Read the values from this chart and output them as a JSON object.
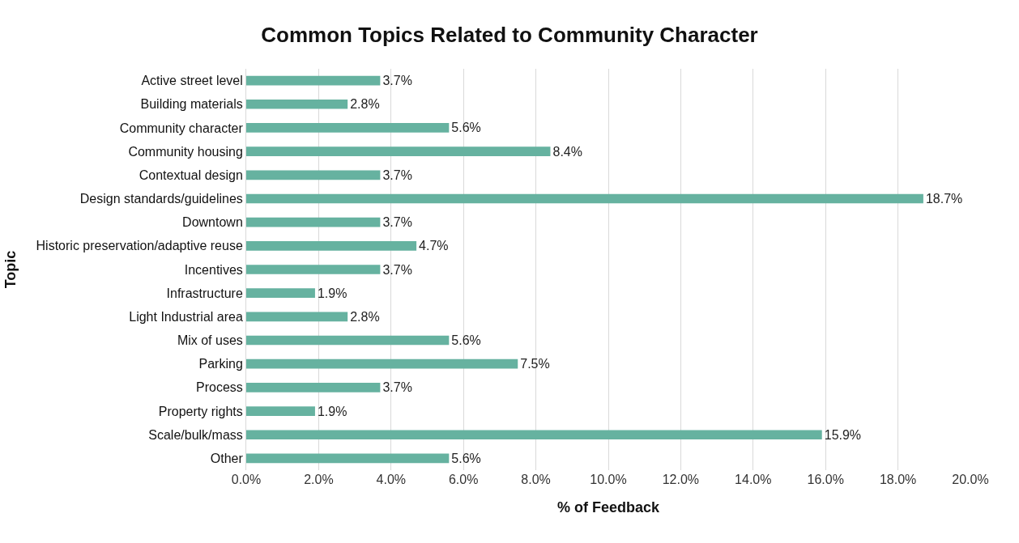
{
  "chart_data": {
    "type": "bar",
    "orientation": "horizontal",
    "title": "Common Topics Related to Community Character",
    "xlabel": "% of Feedback",
    "ylabel": "Topic",
    "categories": [
      "Active street level",
      "Building materials",
      "Community character",
      "Community housing",
      "Contextual design",
      "Design standards/guidelines",
      "Downtown",
      "Historic preservation/adaptive reuse",
      "Incentives",
      "Infrastructure",
      "Light Industrial area",
      "Mix of uses",
      "Parking",
      "Process",
      "Property rights",
      "Scale/bulk/mass",
      "Other"
    ],
    "values": [
      3.7,
      2.8,
      5.6,
      8.4,
      3.7,
      18.7,
      3.7,
      4.7,
      3.7,
      1.9,
      2.8,
      5.6,
      7.5,
      3.7,
      1.9,
      15.9,
      5.6
    ],
    "value_labels": [
      "3.7%",
      "2.8%",
      "5.6%",
      "8.4%",
      "3.7%",
      "18.7%",
      "3.7%",
      "4.7%",
      "3.7%",
      "1.9%",
      "2.8%",
      "5.6%",
      "7.5%",
      "3.7%",
      "1.9%",
      "15.9%",
      "5.6%"
    ],
    "color": "#66b2a0",
    "xlim": [
      0,
      20
    ],
    "xticks": [
      {
        "value": 0,
        "label": "0.0%"
      },
      {
        "value": 2,
        "label": "2.0%"
      },
      {
        "value": 4,
        "label": "4.0%"
      },
      {
        "value": 6,
        "label": "6.0%"
      },
      {
        "value": 8,
        "label": "8.0%"
      },
      {
        "value": 10,
        "label": "10.0%"
      },
      {
        "value": 12,
        "label": "12.0%"
      },
      {
        "value": 14,
        "label": "14.0%"
      },
      {
        "value": 16,
        "label": "16.0%"
      },
      {
        "value": 18,
        "label": "18.0%"
      },
      {
        "value": 20,
        "label": "20.0%"
      }
    ],
    "grid": "x"
  }
}
